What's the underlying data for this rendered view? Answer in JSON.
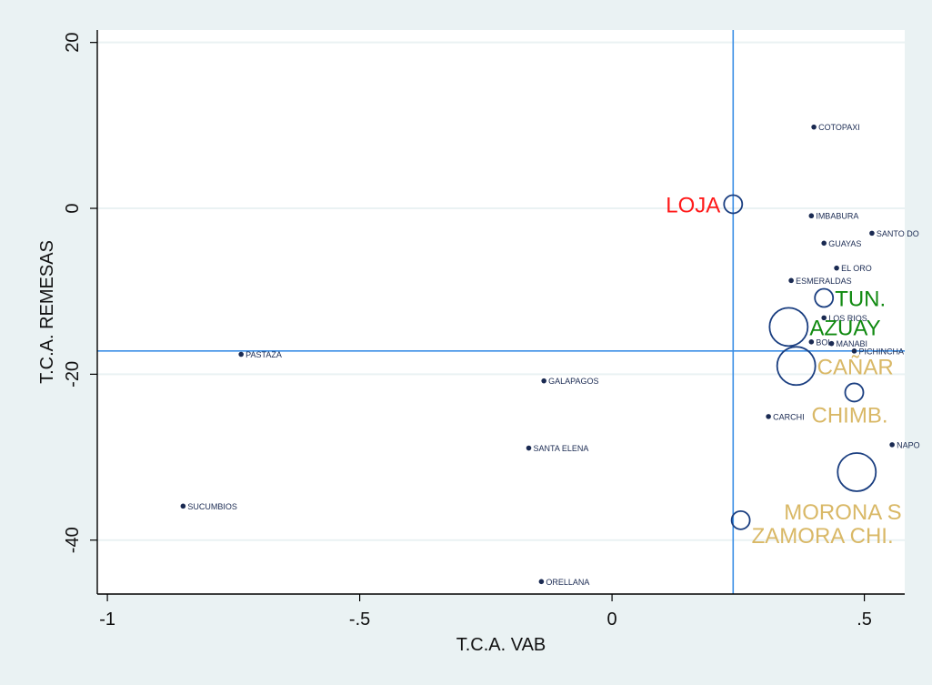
{
  "chart_data": {
    "type": "scatter",
    "xlabel": "T.C.A. VAB",
    "ylabel": "T.C.A. REMESAS",
    "xlim": [
      -1.02,
      0.58
    ],
    "ylim": [
      -46.5,
      21.5
    ],
    "x_ticks": [
      -1,
      -0.5,
      0,
      0.5
    ],
    "x_tick_labels": [
      "-1",
      "-.5",
      "0",
      ".5"
    ],
    "y_ticks": [
      20,
      0,
      -20,
      -40
    ],
    "y_tick_labels": [
      "20",
      "0",
      "-20",
      "-40"
    ],
    "grid": "horizontal",
    "reference_lines": {
      "x": 0.24,
      "y": -17.2
    },
    "colors": {
      "page_background": "#eaf2f3",
      "plot_background": "#ffffff",
      "reference_line": "#3a8ee6",
      "point": "#1a2a52",
      "highlight_red": "#ff1a1a",
      "highlight_green": "#118a11",
      "highlight_gold": "#d9b866",
      "grid": "#eaf2f3"
    },
    "points": [
      {
        "label": "COTOPAXI",
        "x": 0.4,
        "y": 9.8
      },
      {
        "label": "IMBABURA",
        "x": 0.395,
        "y": -0.9
      },
      {
        "label": "SANTO DO",
        "x": 0.515,
        "y": -3.0
      },
      {
        "label": "GUAYAS",
        "x": 0.42,
        "y": -4.2
      },
      {
        "label": "EL ORO",
        "x": 0.445,
        "y": -7.2
      },
      {
        "label": "ESMERALDAS",
        "x": 0.355,
        "y": -8.7
      },
      {
        "label": "LOS RIOS",
        "x": 0.42,
        "y": -13.2
      },
      {
        "label": "BOL",
        "x": 0.395,
        "y": -16.1
      },
      {
        "label": "MANABI",
        "x": 0.435,
        "y": -16.3
      },
      {
        "label": "PICHINCHA",
        "x": 0.48,
        "y": -17.2
      },
      {
        "label": "PASTAZA",
        "x": -0.735,
        "y": -17.6
      },
      {
        "label": "GALAPAGOS",
        "x": -0.135,
        "y": -20.8
      },
      {
        "label": "CARCHI",
        "x": 0.31,
        "y": -25.1
      },
      {
        "label": "NAPO",
        "x": 0.555,
        "y": -28.5
      },
      {
        "label": "SANTA ELENA",
        "x": -0.165,
        "y": -28.9
      },
      {
        "label": "SUCUMBIOS",
        "x": -0.85,
        "y": -35.9
      },
      {
        "label": "ORELLANA",
        "x": -0.14,
        "y": -45.0
      }
    ],
    "highlighted": [
      {
        "label": "LOJA",
        "x": 0.24,
        "y": 0.5,
        "size": "small",
        "color": "red"
      },
      {
        "label": "TUN.",
        "x": 0.42,
        "y": -10.8,
        "size": "small",
        "color": "green"
      },
      {
        "label": "AZUAY",
        "x": 0.35,
        "y": -14.3,
        "size": "large",
        "color": "green"
      },
      {
        "label": "CAÑAR",
        "x": 0.365,
        "y": -19.0,
        "size": "large",
        "color": "gold"
      },
      {
        "label": "CHIMB.",
        "x": 0.48,
        "y": -22.2,
        "size": "small",
        "color": "gold"
      },
      {
        "label": "MORONA S",
        "x": 0.485,
        "y": -31.8,
        "size": "large",
        "color": "gold"
      },
      {
        "label": "ZAMORA CHI.",
        "x": 0.255,
        "y": -37.6,
        "size": "small",
        "color": "gold"
      }
    ]
  }
}
